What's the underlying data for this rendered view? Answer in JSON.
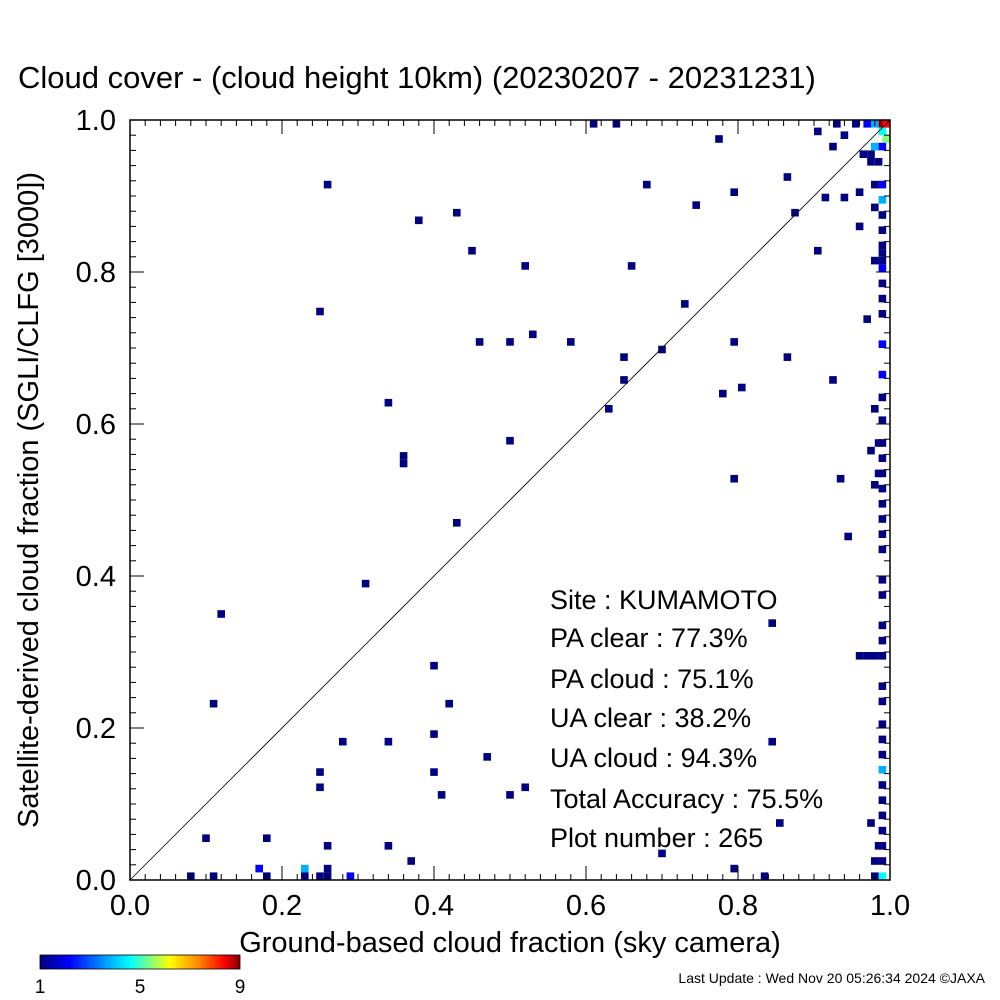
{
  "chart_data": {
    "type": "heatmap",
    "title": "Cloud cover - (cloud height 10km)  (20230207 - 20231231)",
    "xlabel": "Ground-based cloud fraction (sky camera)",
    "ylabel": "Satellite-derived cloud fraction (SGLI/CLFG [3000])",
    "xlim": [
      0,
      1
    ],
    "ylim": [
      0,
      1
    ],
    "x_ticks": [
      "0.0",
      "0.2",
      "0.4",
      "0.6",
      "0.8",
      "1.0"
    ],
    "y_ticks": [
      "0.0",
      "0.2",
      "0.4",
      "0.6",
      "0.8",
      "1.0"
    ],
    "diagonal_line": true,
    "grid": false,
    "colorbar": {
      "min": 1,
      "max": 9,
      "tick_labels": [
        "1",
        "5",
        "9"
      ],
      "colors": [
        "#000080",
        "#0000ff",
        "#00b0ff",
        "#00ffff",
        "#80ff80",
        "#ffff00",
        "#ff8000",
        "#ff0000",
        "#800000"
      ]
    },
    "cells": [
      [
        0.61,
        0.995,
        1
      ],
      [
        0.64,
        0.995,
        1
      ],
      [
        0.775,
        0.975,
        1
      ],
      [
        0.905,
        0.985,
        1
      ],
      [
        0.925,
        0.965,
        1
      ],
      [
        0.93,
        0.995,
        1
      ],
      [
        0.94,
        0.98,
        1
      ],
      [
        0.955,
        0.995,
        1
      ],
      [
        0.97,
        0.995,
        2
      ],
      [
        0.98,
        0.995,
        3
      ],
      [
        0.99,
        0.995,
        9
      ],
      [
        0.995,
        0.995,
        8
      ],
      [
        0.99,
        0.985,
        4
      ],
      [
        0.995,
        0.975,
        5
      ],
      [
        0.98,
        0.965,
        3
      ],
      [
        0.99,
        0.965,
        2
      ],
      [
        0.975,
        0.955,
        1
      ],
      [
        0.965,
        0.955,
        1
      ],
      [
        0.985,
        0.945,
        1
      ],
      [
        0.99,
        0.915,
        2
      ],
      [
        0.98,
        0.915,
        1
      ],
      [
        0.99,
        0.895,
        3
      ],
      [
        0.98,
        0.885,
        1
      ],
      [
        0.99,
        0.875,
        1
      ],
      [
        0.99,
        0.855,
        1
      ],
      [
        0.99,
        0.835,
        1
      ],
      [
        0.99,
        0.825,
        1
      ],
      [
        0.99,
        0.815,
        1
      ],
      [
        0.99,
        0.805,
        2
      ],
      [
        0.98,
        0.815,
        1
      ],
      [
        0.99,
        0.785,
        1
      ],
      [
        0.99,
        0.765,
        1
      ],
      [
        0.99,
        0.745,
        1
      ],
      [
        0.99,
        0.705,
        2
      ],
      [
        0.99,
        0.665,
        2
      ],
      [
        0.99,
        0.635,
        1
      ],
      [
        0.99,
        0.605,
        1
      ],
      [
        0.99,
        0.575,
        1
      ],
      [
        0.99,
        0.555,
        1
      ],
      [
        0.99,
        0.535,
        1
      ],
      [
        0.99,
        0.515,
        1
      ],
      [
        0.99,
        0.495,
        1
      ],
      [
        0.99,
        0.475,
        1
      ],
      [
        0.99,
        0.455,
        1
      ],
      [
        0.99,
        0.435,
        1
      ],
      [
        0.99,
        0.395,
        1
      ],
      [
        0.99,
        0.375,
        1
      ],
      [
        0.99,
        0.335,
        1
      ],
      [
        0.99,
        0.315,
        1
      ],
      [
        0.99,
        0.295,
        1
      ],
      [
        0.99,
        0.255,
        1
      ],
      [
        0.99,
        0.235,
        1
      ],
      [
        0.99,
        0.205,
        1
      ],
      [
        0.99,
        0.185,
        1
      ],
      [
        0.99,
        0.165,
        1
      ],
      [
        0.99,
        0.145,
        3
      ],
      [
        0.99,
        0.125,
        1
      ],
      [
        0.99,
        0.105,
        1
      ],
      [
        0.99,
        0.085,
        1
      ],
      [
        0.99,
        0.065,
        1
      ],
      [
        0.99,
        0.045,
        1
      ],
      [
        0.99,
        0.025,
        1
      ],
      [
        0.99,
        0.005,
        4
      ],
      [
        0.98,
        0.005,
        1
      ],
      [
        0.98,
        0.025,
        1
      ],
      [
        0.975,
        0.565,
        1
      ],
      [
        0.98,
        0.52,
        1
      ],
      [
        0.98,
        0.62,
        1
      ],
      [
        0.985,
        0.575,
        1
      ],
      [
        0.985,
        0.535,
        1
      ],
      [
        0.97,
        0.295,
        1
      ],
      [
        0.98,
        0.295,
        1
      ],
      [
        0.96,
        0.295,
        1
      ],
      [
        0.975,
        0.075,
        1
      ],
      [
        0.985,
        0.045,
        1
      ],
      [
        0.26,
        0.915,
        1
      ],
      [
        0.38,
        0.868,
        1
      ],
      [
        0.43,
        0.878,
        1
      ],
      [
        0.45,
        0.828,
        1
      ],
      [
        0.52,
        0.808,
        1
      ],
      [
        0.68,
        0.915,
        1
      ],
      [
        0.745,
        0.888,
        1
      ],
      [
        0.795,
        0.905,
        1
      ],
      [
        0.865,
        0.925,
        1
      ],
      [
        0.875,
        0.878,
        1
      ],
      [
        0.915,
        0.898,
        1
      ],
      [
        0.94,
        0.898,
        1
      ],
      [
        0.96,
        0.905,
        1
      ],
      [
        0.96,
        0.86,
        1
      ],
      [
        0.975,
        0.945,
        1
      ],
      [
        0.905,
        0.828,
        1
      ],
      [
        0.66,
        0.808,
        1
      ],
      [
        0.73,
        0.758,
        1
      ],
      [
        0.97,
        0.738,
        1
      ],
      [
        0.25,
        0.748,
        1
      ],
      [
        0.46,
        0.708,
        1
      ],
      [
        0.5,
        0.708,
        1
      ],
      [
        0.53,
        0.718,
        1
      ],
      [
        0.58,
        0.708,
        1
      ],
      [
        0.7,
        0.698,
        1
      ],
      [
        0.795,
        0.708,
        1
      ],
      [
        0.65,
        0.688,
        1
      ],
      [
        0.865,
        0.688,
        1
      ],
      [
        0.65,
        0.658,
        1
      ],
      [
        0.78,
        0.64,
        1
      ],
      [
        0.805,
        0.648,
        1
      ],
      [
        0.925,
        0.658,
        1
      ],
      [
        0.34,
        0.628,
        1
      ],
      [
        0.63,
        0.62,
        1
      ],
      [
        0.36,
        0.558,
        1
      ],
      [
        0.36,
        0.548,
        1
      ],
      [
        0.5,
        0.578,
        1
      ],
      [
        0.795,
        0.528,
        1
      ],
      [
        0.935,
        0.528,
        1
      ],
      [
        0.945,
        0.452,
        1
      ],
      [
        0.43,
        0.47,
        1
      ],
      [
        0.31,
        0.39,
        1
      ],
      [
        0.12,
        0.35,
        1
      ],
      [
        0.845,
        0.338,
        1
      ],
      [
        0.4,
        0.282,
        1
      ],
      [
        0.11,
        0.232,
        1
      ],
      [
        0.42,
        0.232,
        1
      ],
      [
        0.28,
        0.182,
        1
      ],
      [
        0.34,
        0.182,
        1
      ],
      [
        0.4,
        0.192,
        1
      ],
      [
        0.47,
        0.162,
        1
      ],
      [
        0.845,
        0.182,
        1
      ],
      [
        0.25,
        0.142,
        1
      ],
      [
        0.4,
        0.142,
        1
      ],
      [
        0.25,
        0.122,
        1
      ],
      [
        0.41,
        0.112,
        1
      ],
      [
        0.5,
        0.112,
        1
      ],
      [
        0.52,
        0.122,
        1
      ],
      [
        0.855,
        0.075,
        1
      ],
      [
        0.1,
        0.055,
        1
      ],
      [
        0.18,
        0.055,
        1
      ],
      [
        0.26,
        0.045,
        1
      ],
      [
        0.34,
        0.045,
        1
      ],
      [
        0.37,
        0.025,
        1
      ],
      [
        0.7,
        0.035,
        1
      ],
      [
        0.08,
        0.005,
        1
      ],
      [
        0.11,
        0.005,
        1
      ],
      [
        0.17,
        0.015,
        2
      ],
      [
        0.18,
        0.005,
        1
      ],
      [
        0.23,
        0.015,
        3
      ],
      [
        0.23,
        0.005,
        1
      ],
      [
        0.25,
        0.005,
        1
      ],
      [
        0.26,
        0.005,
        1
      ],
      [
        0.26,
        0.015,
        1
      ],
      [
        0.29,
        0.005,
        2
      ],
      [
        0.795,
        0.015,
        1
      ],
      [
        0.835,
        0.005,
        1
      ]
    ],
    "stats": {
      "site": "Site : KUMAMOTO",
      "pa_clear": "PA clear :  77.3%",
      "pa_cloud": "PA cloud :  75.1%",
      "ua_clear": "UA clear :  38.2%",
      "ua_cloud": "UA cloud :  94.3%",
      "total_accuracy": "Total Accuracy :  75.5%",
      "plot_number": "Plot number :       265"
    }
  },
  "footer": {
    "last_update": "Last Update : Wed Nov 20 05:26:34 2024  ©JAXA"
  }
}
